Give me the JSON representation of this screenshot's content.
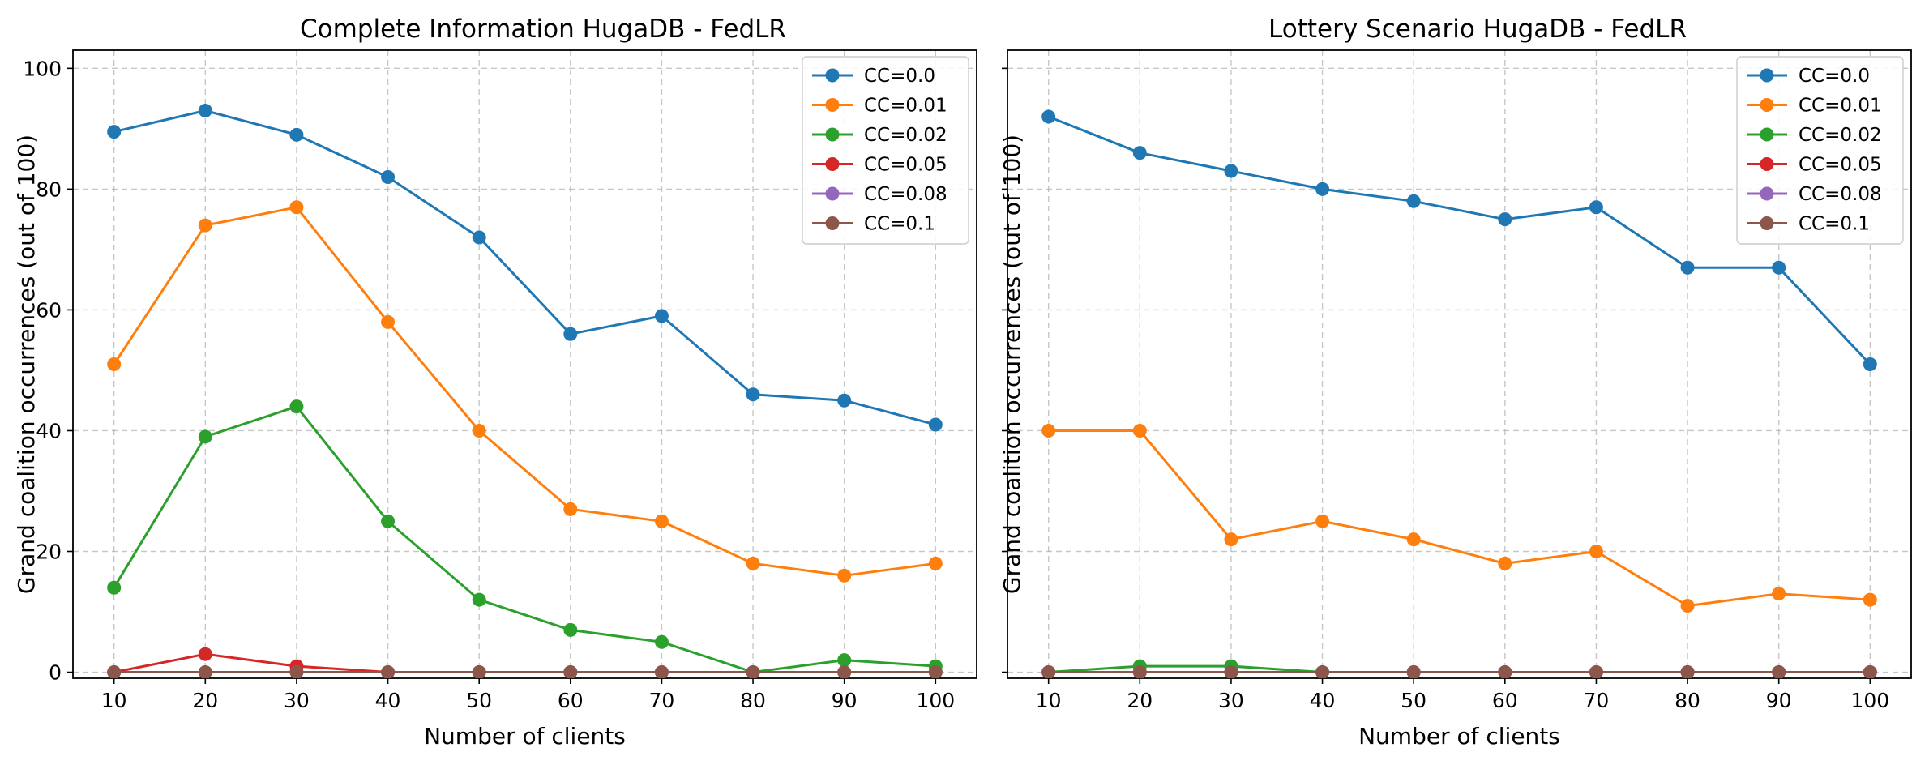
{
  "chart_data": [
    {
      "type": "line",
      "title": "Complete Information HugaDB - FedLR",
      "xlabel": "Number of clients",
      "ylabel": "Grand coalition occurrences (out of 100)",
      "x": [
        10,
        20,
        30,
        40,
        50,
        60,
        70,
        80,
        90,
        100
      ],
      "xticks": [
        "10",
        "20",
        "30",
        "40",
        "50",
        "60",
        "70",
        "80",
        "90",
        "100"
      ],
      "yticks": [
        "0",
        "20",
        "40",
        "60",
        "80",
        "100"
      ],
      "ylim": [
        -1,
        103
      ],
      "grid": true,
      "legend_position": "top-right",
      "series": [
        {
          "name": "CC=0.0",
          "color": "#1f77b4",
          "values": [
            89.5,
            93,
            89,
            82,
            72,
            56,
            59,
            46,
            45,
            41
          ]
        },
        {
          "name": "CC=0.01",
          "color": "#ff7f0e",
          "values": [
            51,
            74,
            77,
            58,
            40,
            27,
            25,
            18,
            16,
            18
          ]
        },
        {
          "name": "CC=0.02",
          "color": "#2ca02c",
          "values": [
            14,
            39,
            44,
            25,
            12,
            7,
            5,
            0,
            2,
            1
          ]
        },
        {
          "name": "CC=0.05",
          "color": "#d62728",
          "values": [
            0,
            3,
            1,
            0,
            0,
            0,
            0,
            0,
            0,
            0
          ]
        },
        {
          "name": "CC=0.08",
          "color": "#9467bd",
          "values": [
            0,
            0,
            0,
            0,
            0,
            0,
            0,
            0,
            0,
            0
          ]
        },
        {
          "name": "CC=0.1",
          "color": "#8c564b",
          "values": [
            0,
            0,
            0,
            0,
            0,
            0,
            0,
            0,
            0,
            0
          ]
        }
      ]
    },
    {
      "type": "line",
      "title": "Lottery Scenario HugaDB - FedLR",
      "xlabel": "Number of clients",
      "ylabel": "Grand coalition occurrences (out of 100)",
      "x": [
        10,
        20,
        30,
        40,
        50,
        60,
        70,
        80,
        90,
        100
      ],
      "xticks": [
        "10",
        "20",
        "30",
        "40",
        "50",
        "60",
        "70",
        "80",
        "90",
        "100"
      ],
      "yticks": [],
      "ylim": [
        -1,
        103
      ],
      "grid": true,
      "legend_position": "top-right",
      "series": [
        {
          "name": "CC=0.0",
          "color": "#1f77b4",
          "values": [
            92,
            86,
            83,
            80,
            78,
            75,
            77,
            67,
            67,
            51
          ]
        },
        {
          "name": "CC=0.01",
          "color": "#ff7f0e",
          "values": [
            40,
            40,
            22,
            25,
            22,
            18,
            20,
            11,
            13,
            12
          ]
        },
        {
          "name": "CC=0.02",
          "color": "#2ca02c",
          "values": [
            0,
            1,
            1,
            0,
            0,
            0,
            0,
            0,
            0,
            0
          ]
        },
        {
          "name": "CC=0.05",
          "color": "#d62728",
          "values": [
            0,
            0,
            0,
            0,
            0,
            0,
            0,
            0,
            0,
            0
          ]
        },
        {
          "name": "CC=0.08",
          "color": "#9467bd",
          "values": [
            0,
            0,
            0,
            0,
            0,
            0,
            0,
            0,
            0,
            0
          ]
        },
        {
          "name": "CC=0.1",
          "color": "#8c564b",
          "values": [
            0,
            0,
            0,
            0,
            0,
            0,
            0,
            0,
            0,
            0
          ]
        }
      ]
    }
  ]
}
